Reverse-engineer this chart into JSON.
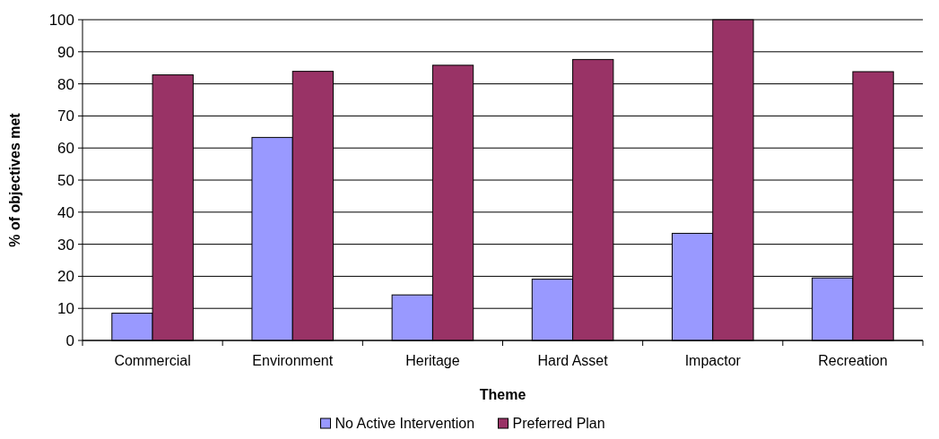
{
  "chart_data": {
    "type": "bar",
    "xlabel": "Theme",
    "ylabel": "% of objectives met",
    "categories": [
      "Commercial",
      "Environment",
      "Heritage",
      "Hard Asset",
      "Impactor",
      "Recreation"
    ],
    "series": [
      {
        "name": "No Active Intervention",
        "color": "#9999ff",
        "values": [
          8.5,
          63.3,
          14.2,
          19.1,
          33.4,
          19.5
        ]
      },
      {
        "name": "Preferred Plan",
        "color": "#993366",
        "values": [
          82.8,
          83.9,
          85.8,
          87.6,
          100,
          83.8
        ]
      }
    ],
    "ylim": [
      0,
      100
    ],
    "yticks": [
      0,
      10,
      20,
      30,
      40,
      50,
      60,
      70,
      80,
      90,
      100
    ],
    "grid": "y",
    "legend": "bottom"
  }
}
